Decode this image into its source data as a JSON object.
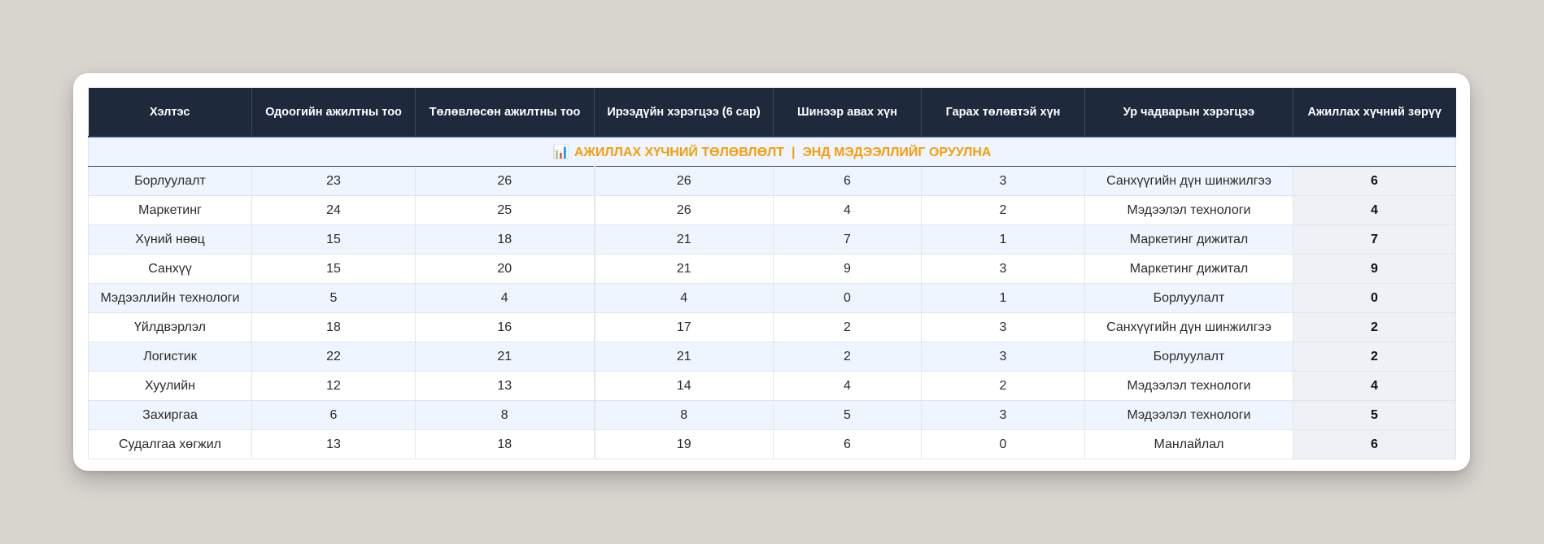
{
  "banner": {
    "icon": "bar-chart-icon",
    "icon_glyph": "📊",
    "title": "АЖИЛЛАХ ХҮЧНИЙ ТӨЛӨВЛӨЛТ  |  ЭНД МЭДЭЭЛЛИЙГ ОРУУЛНА"
  },
  "columns": [
    "Хэлтэс",
    "Одоогийн ажилтны тоо",
    "Төлөвлөсөн ажилтны тоо",
    "Ирээдүйн хэрэгцээ (6 сар)",
    "Шинээр авах хүн",
    "Гарах төлөвтэй хүн",
    "Ур чадварын хэрэгцээ",
    "Ажиллах хүчний зөрүү"
  ],
  "rows": [
    [
      "Борлуулалт",
      "23",
      "26",
      "26",
      "6",
      "3",
      "Санхүүгийн дүн шинжилгээ",
      "6"
    ],
    [
      "Маркетинг",
      "24",
      "25",
      "26",
      "4",
      "2",
      "Мэдээлэл технологи",
      "4"
    ],
    [
      "Хүний нөөц",
      "15",
      "18",
      "21",
      "7",
      "1",
      "Маркетинг дижитал",
      "7"
    ],
    [
      "Санхүү",
      "15",
      "20",
      "21",
      "9",
      "3",
      "Маркетинг дижитал",
      "9"
    ],
    [
      "Мэдээллийн технологи",
      "5",
      "4",
      "4",
      "0",
      "1",
      "Борлуулалт",
      "0"
    ],
    [
      "Үйлдвэрлэл",
      "18",
      "16",
      "17",
      "2",
      "3",
      "Санхүүгийн дүн шинжилгээ",
      "2"
    ],
    [
      "Логистик",
      "22",
      "21",
      "21",
      "2",
      "3",
      "Борлуулалт",
      "2"
    ],
    [
      "Хуулийн",
      "12",
      "13",
      "14",
      "4",
      "2",
      "Мэдээлэл технологи",
      "4"
    ],
    [
      "Захиргаа",
      "6",
      "8",
      "8",
      "5",
      "3",
      "Мэдээлэл технологи",
      "5"
    ],
    [
      "Судалгаа хөгжил",
      "13",
      "18",
      "19",
      "6",
      "0",
      "Манлайлал",
      "6"
    ]
  ],
  "colors": {
    "header_bg": "#1e293b",
    "banner_text": "#f59e0b",
    "row_alt": "#eff5fe"
  }
}
